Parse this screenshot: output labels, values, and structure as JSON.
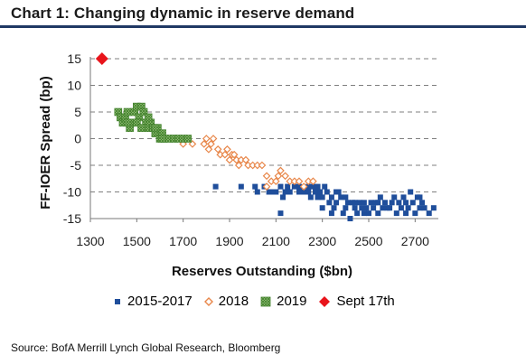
{
  "header": {
    "title": "Chart 1: Changing dynamic in reserve demand"
  },
  "source": "Source: BofA Merrill Lynch Global Research, Bloomberg",
  "chart_data": {
    "type": "scatter",
    "title": "Chart 1: Changing dynamic in reserve demand",
    "xlabel": "Reserves Outstanding ($bn)",
    "ylabel": "FF-IOER Spread (bp)",
    "xlim": [
      1300,
      2800
    ],
    "ylim": [
      -15,
      15
    ],
    "x_ticks": [
      "1300",
      "1500",
      "1700",
      "1900",
      "2100",
      "2300",
      "2500",
      "2700"
    ],
    "y_ticks": [
      "15",
      "10",
      "5",
      "0",
      "-5",
      "-10",
      "-15"
    ],
    "grid": "horizontal dashed",
    "legend_position": "bottom",
    "colors": {
      "2015-2017": "#1f4e9b",
      "2018": "#e8874a",
      "2019": "#4e9a3a",
      "Sept 17th": "#e8141b"
    },
    "series": [
      {
        "name": "2015-2017",
        "marker": "square",
        "points": [
          [
            1840,
            -9
          ],
          [
            1950,
            -9
          ],
          [
            2010,
            -9
          ],
          [
            2020,
            -10
          ],
          [
            2050,
            -9
          ],
          [
            2070,
            -10
          ],
          [
            2100,
            -10
          ],
          [
            2120,
            -9
          ],
          [
            2130,
            -11
          ],
          [
            2140,
            -10
          ],
          [
            2160,
            -10
          ],
          [
            2120,
            -14
          ],
          [
            2180,
            -9
          ],
          [
            2200,
            -9
          ],
          [
            2220,
            -10
          ],
          [
            2240,
            -9
          ],
          [
            2250,
            -11
          ],
          [
            2260,
            -9
          ],
          [
            2270,
            -10
          ],
          [
            2280,
            -9
          ],
          [
            2290,
            -10
          ],
          [
            2300,
            -11
          ],
          [
            2310,
            -9
          ],
          [
            2320,
            -10
          ],
          [
            2330,
            -12
          ],
          [
            2340,
            -11
          ],
          [
            2350,
            -13
          ],
          [
            2360,
            -12
          ],
          [
            2370,
            -10
          ],
          [
            2380,
            -11
          ],
          [
            2390,
            -14
          ],
          [
            2400,
            -13
          ],
          [
            2410,
            -12
          ],
          [
            2420,
            -15
          ],
          [
            2430,
            -12
          ],
          [
            2440,
            -13
          ],
          [
            2450,
            -14
          ],
          [
            2460,
            -12
          ],
          [
            2470,
            -13
          ],
          [
            2480,
            -12
          ],
          [
            2490,
            -13
          ],
          [
            2500,
            -14
          ],
          [
            2510,
            -12
          ],
          [
            2520,
            -13
          ],
          [
            2530,
            -12
          ],
          [
            2540,
            -14
          ],
          [
            2550,
            -11
          ],
          [
            2560,
            -13
          ],
          [
            2570,
            -12
          ],
          [
            2590,
            -13
          ],
          [
            2610,
            -11
          ],
          [
            2620,
            -14
          ],
          [
            2630,
            -12
          ],
          [
            2640,
            -13
          ],
          [
            2650,
            -11
          ],
          [
            2660,
            -12
          ],
          [
            2670,
            -13
          ],
          [
            2680,
            -10
          ],
          [
            2690,
            -12
          ],
          [
            2700,
            -14
          ],
          [
            2710,
            -11
          ],
          [
            2720,
            -13
          ],
          [
            2730,
            -12
          ],
          [
            2740,
            -13
          ],
          [
            2760,
            -14
          ],
          [
            2780,
            -13
          ],
          [
            2300,
            -13
          ],
          [
            2340,
            -14
          ],
          [
            2400,
            -11
          ],
          [
            2480,
            -14
          ],
          [
            2540,
            -12
          ],
          [
            2600,
            -12
          ],
          [
            2720,
            -11
          ],
          [
            2660,
            -14
          ],
          [
            2580,
            -13
          ],
          [
            2440,
            -12
          ],
          [
            2360,
            -10
          ],
          [
            2280,
            -11
          ],
          [
            2240,
            -10
          ],
          [
            2200,
            -10
          ],
          [
            2150,
            -9
          ],
          [
            2090,
            -10
          ]
        ]
      },
      {
        "name": "2018",
        "marker": "diamond",
        "points": [
          [
            1700,
            -1
          ],
          [
            1720,
            0
          ],
          [
            1740,
            -1
          ],
          [
            1790,
            -1
          ],
          [
            1800,
            0
          ],
          [
            1810,
            -2
          ],
          [
            1820,
            -1
          ],
          [
            1830,
            0
          ],
          [
            1850,
            -2
          ],
          [
            1860,
            -3
          ],
          [
            1880,
            -3
          ],
          [
            1890,
            -2
          ],
          [
            1900,
            -4
          ],
          [
            1910,
            -3
          ],
          [
            1920,
            -3
          ],
          [
            1930,
            -4
          ],
          [
            1940,
            -5
          ],
          [
            1950,
            -4
          ],
          [
            1970,
            -4
          ],
          [
            1980,
            -5
          ],
          [
            2000,
            -5
          ],
          [
            2020,
            -5
          ],
          [
            2040,
            -5
          ],
          [
            2060,
            -7
          ],
          [
            2080,
            -8
          ],
          [
            2100,
            -8
          ],
          [
            2110,
            -7
          ],
          [
            2120,
            -6
          ],
          [
            2140,
            -7
          ],
          [
            2160,
            -8
          ],
          [
            2180,
            -8
          ],
          [
            2200,
            -8
          ],
          [
            2220,
            -9
          ],
          [
            2240,
            -8
          ],
          [
            2260,
            -8
          ],
          [
            2060,
            -9
          ]
        ]
      },
      {
        "name": "2019",
        "marker": "square",
        "points": [
          [
            1420,
            5
          ],
          [
            1430,
            4
          ],
          [
            1440,
            3
          ],
          [
            1450,
            4
          ],
          [
            1460,
            5
          ],
          [
            1470,
            2
          ],
          [
            1480,
            3
          ],
          [
            1490,
            5
          ],
          [
            1500,
            6
          ],
          [
            1510,
            4
          ],
          [
            1520,
            6
          ],
          [
            1530,
            5
          ],
          [
            1540,
            3
          ],
          [
            1550,
            2
          ],
          [
            1560,
            3
          ],
          [
            1570,
            2
          ],
          [
            1580,
            1
          ],
          [
            1590,
            2
          ],
          [
            1600,
            0
          ],
          [
            1610,
            1
          ],
          [
            1620,
            0
          ],
          [
            1640,
            0
          ],
          [
            1660,
            0
          ],
          [
            1680,
            0
          ],
          [
            1700,
            0
          ],
          [
            1720,
            0
          ],
          [
            1500,
            3
          ],
          [
            1520,
            2
          ],
          [
            1460,
            3
          ],
          [
            1550,
            4
          ],
          [
            1580,
            2
          ],
          [
            1610,
            0
          ]
        ]
      },
      {
        "name": "Sept 17th",
        "marker": "diamond",
        "points": [
          [
            1350,
            15
          ]
        ]
      }
    ]
  },
  "legend": {
    "items": [
      {
        "label": "2015-2017",
        "marker": "square",
        "color": "#1f4e9b"
      },
      {
        "label": "2018",
        "marker": "diamond-open",
        "color": "#e8874a"
      },
      {
        "label": "2019",
        "marker": "square-hatched",
        "color": "#4e9a3a"
      },
      {
        "label": "Sept 17th",
        "marker": "diamond",
        "color": "#e8141b"
      }
    ]
  }
}
